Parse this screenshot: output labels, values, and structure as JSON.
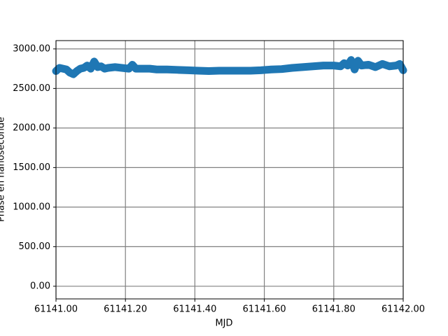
{
  "chart_data": {
    "type": "line",
    "xlabel": "MJD",
    "ylabel": "Phase en nanoseconde",
    "x": [
      61141.0,
      61141.01,
      61141.02,
      61141.03,
      61141.04,
      61141.05,
      61141.06,
      61141.07,
      61141.08,
      61141.09,
      61141.1,
      61141.11,
      61141.12,
      61141.13,
      61141.14,
      61141.15,
      61141.17,
      61141.19,
      61141.21,
      61141.22,
      61141.23,
      61141.25,
      61141.27,
      61141.29,
      61141.32,
      61141.35,
      61141.38,
      61141.41,
      61141.44,
      61141.47,
      61141.5,
      61141.53,
      61141.56,
      61141.59,
      61141.62,
      61141.65,
      61141.68,
      61141.71,
      61141.74,
      61141.77,
      61141.8,
      61141.82,
      61141.83,
      61141.84,
      61141.85,
      61141.86,
      61141.87,
      61141.88,
      61141.9,
      61141.92,
      61141.94,
      61141.96,
      61141.98,
      61141.99,
      61142.0
    ],
    "series": [
      {
        "color": "#1f77b4",
        "values": [
          2720,
          2760,
          2750,
          2740,
          2700,
          2680,
          2720,
          2750,
          2760,
          2790,
          2750,
          2840,
          2770,
          2780,
          2750,
          2760,
          2770,
          2760,
          2750,
          2800,
          2750,
          2750,
          2750,
          2740,
          2740,
          2735,
          2730,
          2725,
          2720,
          2725,
          2725,
          2725,
          2725,
          2730,
          2740,
          2745,
          2760,
          2770,
          2780,
          2790,
          2790,
          2780,
          2820,
          2790,
          2860,
          2740,
          2850,
          2790,
          2800,
          2770,
          2810,
          2780,
          2790,
          2810,
          2730
        ]
      }
    ],
    "xlim": [
      61141,
      61142
    ],
    "ylim": [
      -160,
      3105
    ],
    "xticks": [
      {
        "value": 61141,
        "label": "61141.00"
      },
      {
        "value": 61141.2,
        "label": "61141.20"
      },
      {
        "value": 61141.4,
        "label": "61141.40"
      },
      {
        "value": 61141.6,
        "label": "61141.60"
      },
      {
        "value": 61141.8,
        "label": "61141.80"
      },
      {
        "value": 61142,
        "label": "61142.00"
      }
    ],
    "yticks": [
      {
        "value": 0,
        "label": "0.00"
      },
      {
        "value": 500,
        "label": "500.00"
      },
      {
        "value": 1000,
        "label": "1000.00"
      },
      {
        "value": 1500,
        "label": "1500.00"
      },
      {
        "value": 2000,
        "label": "2000.00"
      },
      {
        "value": 2500,
        "label": "2500.00"
      },
      {
        "value": 3000,
        "label": "3000.00"
      }
    ],
    "grid": true
  }
}
